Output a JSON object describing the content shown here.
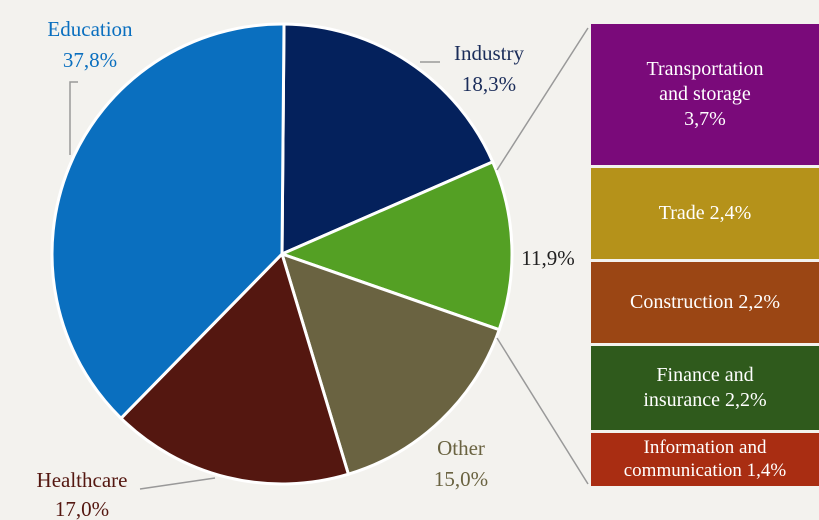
{
  "chart_data": {
    "type": "pie",
    "slices": [
      {
        "label": "Education",
        "value_label": "37,8%",
        "value": 37.8,
        "color": "#0a6fbf"
      },
      {
        "label": "Industry",
        "value_label": "18,3%",
        "value": 18.3,
        "color": "#04215c"
      },
      {
        "label": "",
        "value_label": "11,9%",
        "value": 11.9,
        "color": "#54a024"
      },
      {
        "label": "Other",
        "value_label": "15,0%",
        "value": 15.0,
        "color": "#6a6341"
      },
      {
        "label": "Healthcare",
        "value_label": "17,0%",
        "value": 17.0,
        "color": "#541710"
      }
    ],
    "breakdown": [
      {
        "line1": "Transportation",
        "line2": "and storage",
        "line3": "3,7%",
        "value": 3.7,
        "color": "#7a0a7a"
      },
      {
        "line1": "Trade 2,4%",
        "line2": "",
        "line3": "",
        "value": 2.4,
        "color": "#b5921a"
      },
      {
        "line1": "Construction 2,2%",
        "line2": "",
        "line3": "",
        "value": 2.2,
        "color": "#9b4614"
      },
      {
        "line1": "Finance and",
        "line2": "insurance 2,2%",
        "line3": "",
        "value": 2.2,
        "color": "#2f5a1c"
      },
      {
        "line1": "Information and",
        "line2": "communication 1,4%",
        "line3": "",
        "value": 1.4,
        "color": "#a92d12"
      }
    ]
  }
}
